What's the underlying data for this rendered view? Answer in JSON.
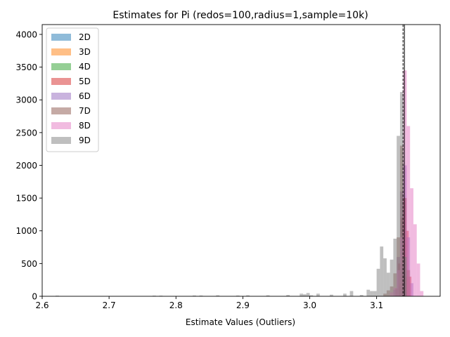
{
  "chart_data": {
    "type": "bar",
    "title": "Estimates for Pi (redos=100,radius=1,sample=10k)",
    "xlabel": "Estimate Values (Outliers)",
    "ylabel": "",
    "xlim": [
      2.6,
      3.195
    ],
    "ylim": [
      0,
      4150
    ],
    "xticks": [
      "2.6",
      "2.7",
      "2.8",
      "2.9",
      "3.0",
      "3.1"
    ],
    "yticks": [
      "0",
      "500",
      "1000",
      "1500",
      "2000",
      "2500",
      "3000",
      "3500",
      "4000"
    ],
    "grid": false,
    "legend_position": "upper-left",
    "opacity": 0.5,
    "reference_lines": [
      {
        "x": 3.1416,
        "style": "solid",
        "color": "#000000"
      },
      {
        "x": 3.1395,
        "style": "dashed",
        "color": "#000000"
      }
    ],
    "series": [
      {
        "name": "2D",
        "color": "#1f77b4",
        "bins": [
          {
            "x0": 3.136,
            "x1": 3.139,
            "value": 150
          },
          {
            "x0": 3.139,
            "x1": 3.142,
            "value": 300
          },
          {
            "x0": 3.142,
            "x1": 3.145,
            "value": 200
          }
        ]
      },
      {
        "name": "3D",
        "color": "#ff7f0e",
        "bins": [
          {
            "x0": 3.134,
            "x1": 3.137,
            "value": 200
          },
          {
            "x0": 3.137,
            "x1": 3.14,
            "value": 600
          },
          {
            "x0": 3.14,
            "x1": 3.143,
            "value": 800
          },
          {
            "x0": 3.143,
            "x1": 3.146,
            "value": 300
          }
        ]
      },
      {
        "name": "4D",
        "color": "#2ca02c",
        "bins": [
          {
            "x0": 3.133,
            "x1": 3.136,
            "value": 150
          },
          {
            "x0": 3.136,
            "x1": 3.139,
            "value": 500
          },
          {
            "x0": 3.139,
            "x1": 3.142,
            "value": 700
          },
          {
            "x0": 3.142,
            "x1": 3.145,
            "value": 300
          }
        ]
      },
      {
        "name": "5D",
        "color": "#d62728",
        "bins": [
          {
            "x0": 3.128,
            "x1": 3.132,
            "value": 120
          },
          {
            "x0": 3.132,
            "x1": 3.136,
            "value": 500
          },
          {
            "x0": 3.136,
            "x1": 3.14,
            "value": 1200
          },
          {
            "x0": 3.14,
            "x1": 3.144,
            "value": 1500
          },
          {
            "x0": 3.144,
            "x1": 3.148,
            "value": 1000
          },
          {
            "x0": 3.148,
            "x1": 3.152,
            "value": 300
          }
        ]
      },
      {
        "name": "6D",
        "color": "#9467bd",
        "bins": [
          {
            "x0": 3.125,
            "x1": 3.13,
            "value": 100
          },
          {
            "x0": 3.13,
            "x1": 3.135,
            "value": 600
          },
          {
            "x0": 3.135,
            "x1": 3.14,
            "value": 1600
          },
          {
            "x0": 3.14,
            "x1": 3.145,
            "value": 2000
          },
          {
            "x0": 3.145,
            "x1": 3.15,
            "value": 900
          },
          {
            "x0": 3.15,
            "x1": 3.155,
            "value": 200
          }
        ]
      },
      {
        "name": "7D",
        "color": "#8c564b",
        "bins": [
          {
            "x0": 3.11,
            "x1": 3.115,
            "value": 40
          },
          {
            "x0": 3.115,
            "x1": 3.12,
            "value": 90
          },
          {
            "x0": 3.12,
            "x1": 3.125,
            "value": 150
          },
          {
            "x0": 3.125,
            "x1": 3.13,
            "value": 350
          },
          {
            "x0": 3.13,
            "x1": 3.135,
            "value": 900
          },
          {
            "x0": 3.135,
            "x1": 3.14,
            "value": 2300
          },
          {
            "x0": 3.14,
            "x1": 3.145,
            "value": 1500
          },
          {
            "x0": 3.145,
            "x1": 3.15,
            "value": 400
          }
        ]
      },
      {
        "name": "8D",
        "color": "#e377c2",
        "bins": [
          {
            "x0": 3.12,
            "x1": 3.125,
            "value": 60
          },
          {
            "x0": 3.125,
            "x1": 3.13,
            "value": 130
          },
          {
            "x0": 3.13,
            "x1": 3.135,
            "value": 400
          },
          {
            "x0": 3.135,
            "x1": 3.14,
            "value": 900
          },
          {
            "x0": 3.14,
            "x1": 3.145,
            "value": 3450
          },
          {
            "x0": 3.145,
            "x1": 3.15,
            "value": 2600
          },
          {
            "x0": 3.15,
            "x1": 3.155,
            "value": 1650
          },
          {
            "x0": 3.155,
            "x1": 3.16,
            "value": 1100
          },
          {
            "x0": 3.16,
            "x1": 3.165,
            "value": 500
          },
          {
            "x0": 3.165,
            "x1": 3.17,
            "value": 80
          }
        ]
      },
      {
        "name": "9D",
        "color": "#7f7f7f",
        "bins": [
          {
            "x0": 2.62,
            "x1": 2.625,
            "value": 10
          },
          {
            "x0": 2.765,
            "x1": 2.77,
            "value": 10
          },
          {
            "x0": 2.775,
            "x1": 2.78,
            "value": 10
          },
          {
            "x0": 2.825,
            "x1": 2.83,
            "value": 12
          },
          {
            "x0": 2.835,
            "x1": 2.84,
            "value": 12
          },
          {
            "x0": 2.86,
            "x1": 2.865,
            "value": 15
          },
          {
            "x0": 2.89,
            "x1": 2.895,
            "value": 12
          },
          {
            "x0": 2.905,
            "x1": 2.91,
            "value": 15
          },
          {
            "x0": 2.935,
            "x1": 2.94,
            "value": 15
          },
          {
            "x0": 2.965,
            "x1": 2.97,
            "value": 20
          },
          {
            "x0": 2.985,
            "x1": 2.99,
            "value": 40
          },
          {
            "x0": 2.99,
            "x1": 2.995,
            "value": 30
          },
          {
            "x0": 2.995,
            "x1": 3.0,
            "value": 50
          },
          {
            "x0": 3.0,
            "x1": 3.005,
            "value": 15
          },
          {
            "x0": 3.01,
            "x1": 3.015,
            "value": 40
          },
          {
            "x0": 3.03,
            "x1": 3.035,
            "value": 25
          },
          {
            "x0": 3.05,
            "x1": 3.055,
            "value": 40
          },
          {
            "x0": 3.06,
            "x1": 3.065,
            "value": 80
          },
          {
            "x0": 3.075,
            "x1": 3.08,
            "value": 20
          },
          {
            "x0": 3.085,
            "x1": 3.09,
            "value": 100
          },
          {
            "x0": 3.09,
            "x1": 3.095,
            "value": 80
          },
          {
            "x0": 3.095,
            "x1": 3.1,
            "value": 80
          },
          {
            "x0": 3.1,
            "x1": 3.105,
            "value": 420
          },
          {
            "x0": 3.105,
            "x1": 3.11,
            "value": 760
          },
          {
            "x0": 3.11,
            "x1": 3.115,
            "value": 580
          },
          {
            "x0": 3.115,
            "x1": 3.12,
            "value": 360
          },
          {
            "x0": 3.12,
            "x1": 3.125,
            "value": 560
          },
          {
            "x0": 3.125,
            "x1": 3.13,
            "value": 880
          },
          {
            "x0": 3.13,
            "x1": 3.135,
            "value": 2450
          },
          {
            "x0": 3.135,
            "x1": 3.14,
            "value": 3120
          },
          {
            "x0": 3.14,
            "x1": 3.145,
            "value": 600
          }
        ]
      }
    ]
  }
}
